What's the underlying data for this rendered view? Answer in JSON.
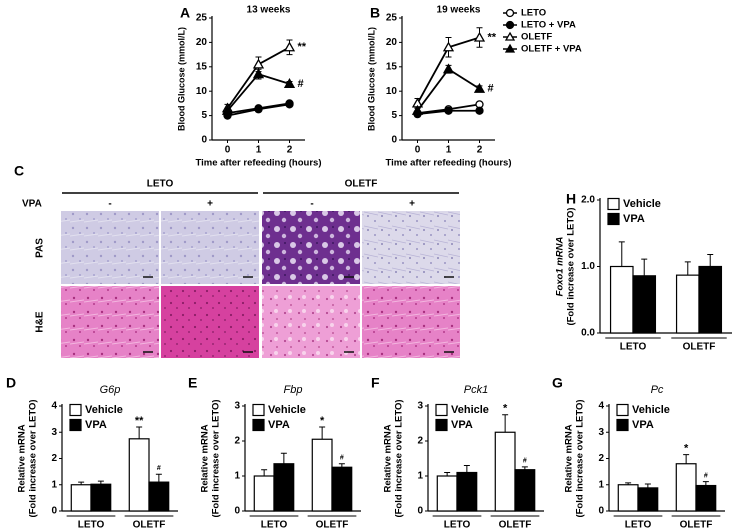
{
  "chart_data": [
    {
      "type": "line",
      "panel": "A",
      "title": "13 weeks",
      "xlabel": "Time after refeeding (hours)",
      "ylabel": "Blood Glucose (mmol/L)",
      "x": [
        0,
        1,
        2
      ],
      "xlim": [
        -0.5,
        2.5
      ],
      "xticks": [
        0,
        1,
        2
      ],
      "ylim": [
        0,
        25
      ],
      "yticks": [
        0,
        5,
        10,
        15,
        20,
        25
      ],
      "series": [
        {
          "name": "LETO",
          "color": "#000000",
          "marker": "circle",
          "fill": "#ffffff",
          "values": [
            5.5,
            6.5,
            7.5
          ],
          "errors": [
            0.5,
            0.4,
            0.4
          ],
          "labels": [
            null,
            null,
            null
          ]
        },
        {
          "name": "LETO + VPA",
          "color": "#000000",
          "marker": "circle",
          "fill": "#000000",
          "values": [
            5,
            6.3,
            7.3
          ],
          "errors": [
            0.5,
            0.4,
            0.4
          ],
          "labels": [
            null,
            null,
            null
          ]
        },
        {
          "name": "OLETF",
          "color": "#000000",
          "marker": "triangle",
          "fill": "#ffffff",
          "values": [
            6.5,
            15.5,
            19
          ],
          "errors": [
            0.8,
            1.5,
            1.5
          ],
          "labels": [
            null,
            null,
            "**"
          ]
        },
        {
          "name": "OLETF + VPA",
          "color": "#000000",
          "marker": "triangle",
          "fill": "#000000",
          "values": [
            6,
            13.5,
            11.5
          ],
          "errors": [
            0.5,
            1,
            0.5
          ],
          "labels": [
            null,
            null,
            "#"
          ]
        }
      ]
    },
    {
      "type": "line",
      "panel": "B",
      "title": "19 weeks",
      "xlabel": "Time after refeeding (hours)",
      "ylabel": "Blood Glucose (mmol/L)",
      "x": [
        0,
        1,
        2
      ],
      "xlim": [
        -0.5,
        2.5
      ],
      "xticks": [
        0,
        1,
        2
      ],
      "ylim": [
        0,
        25
      ],
      "yticks": [
        0,
        5,
        10,
        15,
        20,
        25
      ],
      "legend": "right",
      "series": [
        {
          "name": "LETO",
          "color": "#000000",
          "marker": "circle",
          "fill": "#ffffff",
          "values": [
            5.5,
            6.3,
            7.3
          ],
          "errors": [
            0.4,
            0.4,
            0.5
          ],
          "labels": [
            null,
            null,
            null
          ]
        },
        {
          "name": "LETO + VPA",
          "color": "#000000",
          "marker": "circle",
          "fill": "#000000",
          "values": [
            5.3,
            6,
            6
          ],
          "errors": [
            0.4,
            0.4,
            0.4
          ],
          "labels": [
            null,
            null,
            null
          ]
        },
        {
          "name": "OLETF",
          "color": "#000000",
          "marker": "triangle",
          "fill": "#ffffff",
          "values": [
            7.5,
            19,
            21
          ],
          "errors": [
            1,
            2,
            2
          ],
          "labels": [
            null,
            null,
            "**"
          ]
        },
        {
          "name": "OLETF + VPA",
          "color": "#000000",
          "marker": "triangle",
          "fill": "#000000",
          "values": [
            6,
            14.5,
            10.5
          ],
          "errors": [
            0.5,
            0.8,
            0.6
          ],
          "labels": [
            null,
            null,
            "#"
          ]
        }
      ]
    },
    {
      "type": "bar",
      "panel": "D",
      "title": "G6p",
      "ylabel": [
        "Relative mRNA",
        "(Fold increase over LETO)"
      ],
      "categories": [
        "LETO",
        "OLETF"
      ],
      "ylim": [
        0,
        4
      ],
      "yticks": [
        0,
        1,
        2,
        3,
        4
      ],
      "legend": "upper left",
      "series": [
        {
          "name": "Vehicle",
          "color": "#ffffff",
          "values": [
            1,
            2.75
          ],
          "errors": [
            0.1,
            0.45
          ],
          "labels": [
            null,
            "**"
          ]
        },
        {
          "name": "VPA",
          "color": "#000000",
          "values": [
            1.02,
            1.1
          ],
          "errors": [
            0.12,
            0.3
          ],
          "labels": [
            null,
            "#"
          ]
        }
      ]
    },
    {
      "type": "bar",
      "panel": "E",
      "title": "Fbp",
      "ylabel": [
        "Relative mRNA",
        "(Fold increase over LETO)"
      ],
      "categories": [
        "LETO",
        "OLETF"
      ],
      "ylim": [
        0,
        3
      ],
      "yticks": [
        0,
        1,
        2,
        3
      ],
      "legend": "upper left",
      "series": [
        {
          "name": "Vehicle",
          "color": "#ffffff",
          "values": [
            1,
            2.05
          ],
          "errors": [
            0.18,
            0.35
          ],
          "labels": [
            null,
            "*"
          ]
        },
        {
          "name": "VPA",
          "color": "#000000",
          "values": [
            1.35,
            1.25
          ],
          "errors": [
            0.3,
            0.1
          ],
          "labels": [
            null,
            "#"
          ]
        }
      ]
    },
    {
      "type": "bar",
      "panel": "F",
      "title": "Pck1",
      "ylabel": [
        "Relative mRNA",
        "(Fold increase over LETO)"
      ],
      "categories": [
        "LETO",
        "OLETF"
      ],
      "ylim": [
        0,
        3
      ],
      "yticks": [
        0,
        1,
        2,
        3
      ],
      "legend": "upper left",
      "series": [
        {
          "name": "Vehicle",
          "color": "#ffffff",
          "values": [
            1,
            2.25
          ],
          "errors": [
            0.1,
            0.5
          ],
          "labels": [
            null,
            "*"
          ]
        },
        {
          "name": "VPA",
          "color": "#000000",
          "values": [
            1.1,
            1.18
          ],
          "errors": [
            0.2,
            0.08
          ],
          "labels": [
            null,
            "#"
          ]
        }
      ]
    },
    {
      "type": "bar",
      "panel": "G",
      "title": "Pc",
      "ylabel": [
        "Relative mRNA",
        "(Fold increase over LETO)"
      ],
      "categories": [
        "LETO",
        "OLETF"
      ],
      "ylim": [
        0,
        4
      ],
      "yticks": [
        0,
        1,
        2,
        3,
        4
      ],
      "legend": "upper left",
      "series": [
        {
          "name": "Vehicle",
          "color": "#ffffff",
          "values": [
            1,
            1.8
          ],
          "errors": [
            0.07,
            0.35
          ],
          "labels": [
            null,
            "*"
          ]
        },
        {
          "name": "VPA",
          "color": "#000000",
          "values": [
            0.88,
            0.97
          ],
          "errors": [
            0.15,
            0.15
          ],
          "labels": [
            null,
            "#"
          ]
        }
      ]
    },
    {
      "type": "bar",
      "panel": "H",
      "ylabel": [
        "Foxo1 mRNA",
        "(Fold increase over LETO)"
      ],
      "categories": [
        "LETO",
        "OLETF"
      ],
      "ylim": [
        0,
        2
      ],
      "yticks": [
        {
          "value": 0,
          "label": "0.0"
        },
        {
          "value": 1,
          "label": "1.0"
        },
        {
          "value": 2,
          "label": "2.0"
        }
      ],
      "legend": "upper left",
      "series": [
        {
          "name": "Vehicle",
          "color": "#ffffff",
          "values": [
            1,
            0.87
          ],
          "errors": [
            0.37,
            0.2
          ],
          "labels": [
            null,
            null
          ]
        },
        {
          "name": "VPA",
          "color": "#000000",
          "values": [
            0.86,
            1
          ],
          "errors": [
            0.25,
            0.18
          ],
          "labels": [
            null,
            null
          ]
        }
      ]
    }
  ],
  "histology": {
    "panel": "C",
    "groups": [
      "LETO",
      "OLETF"
    ],
    "treatment_label": "VPA",
    "treatments": [
      "-",
      "+",
      "-",
      "+"
    ],
    "rows": [
      "PAS",
      "H&E"
    ]
  }
}
